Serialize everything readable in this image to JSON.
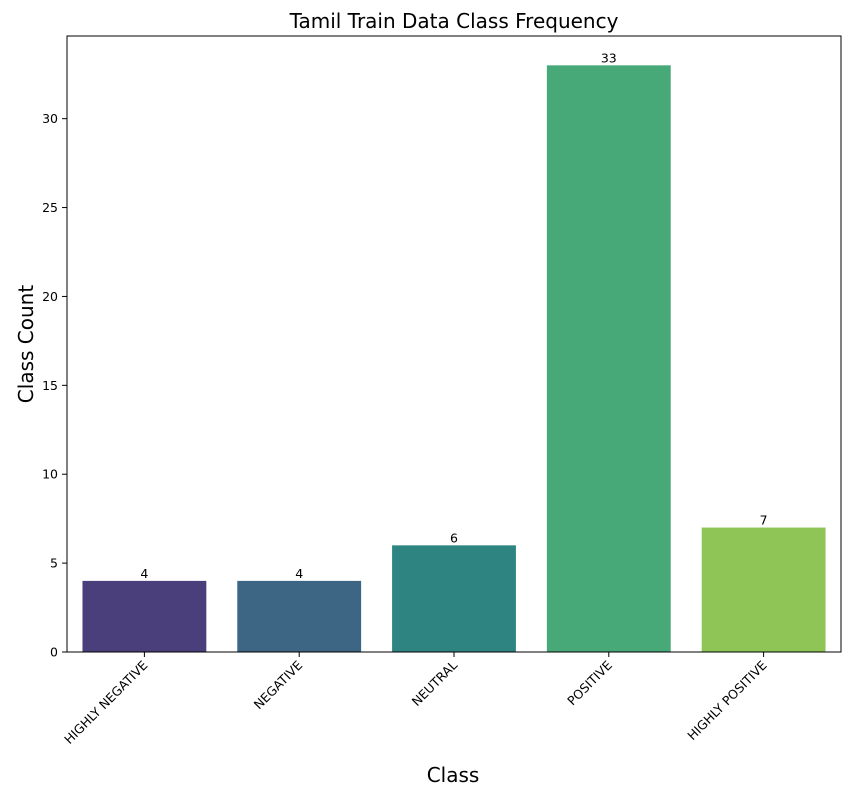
{
  "chart_data": {
    "type": "bar",
    "title": "Tamil Train Data Class Frequency",
    "xlabel": "Class",
    "ylabel": "Class Count",
    "categories": [
      "HIGHLY NEGATIVE",
      "NEGATIVE",
      "NEUTRAL",
      "POSITIVE",
      "HIGHLY POSITIVE"
    ],
    "values": [
      4,
      4,
      6,
      33,
      7
    ],
    "data_labels": [
      "4",
      "4",
      "6",
      "33",
      "7"
    ],
    "colors": [
      "#4a3f7a",
      "#3d6584",
      "#2e8480",
      "#47a878",
      "#8fc456"
    ],
    "ylim": [
      0,
      34.65
    ],
    "yticks": [
      0,
      5,
      10,
      15,
      20,
      25,
      30
    ],
    "grid": false,
    "legend": "none"
  }
}
